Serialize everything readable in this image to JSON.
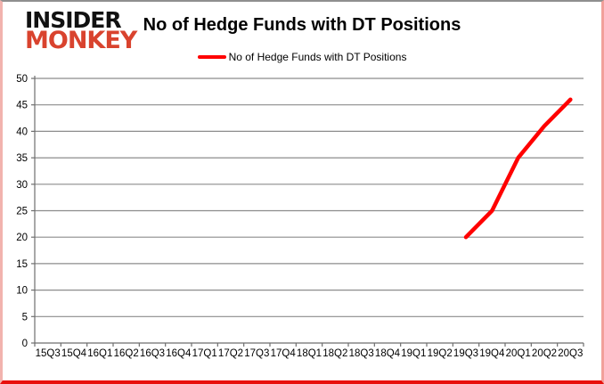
{
  "logo": {
    "line1": "INSIDER",
    "line2": "MONKEY"
  },
  "title": "No of Hedge Funds with DT Positions",
  "legend": {
    "label": "No of Hedge Funds with DT Positions"
  },
  "colors": {
    "logo_black": "#111111",
    "logo_red": "#d9432e",
    "line_red": "#ff0000",
    "grid_gray": "#8c8c8c",
    "axis_gray": "#6e6e6e",
    "label_black": "#000000",
    "border_bottom_red": "#e8100c"
  },
  "chart_data": {
    "type": "line",
    "title": "No of Hedge Funds with DT Positions",
    "categories": [
      "15Q3",
      "15Q4",
      "16Q1",
      "16Q2",
      "16Q3",
      "16Q4",
      "17Q1",
      "17Q2",
      "17Q3",
      "17Q4",
      "18Q1",
      "18Q2",
      "18Q3",
      "18Q4",
      "19Q1",
      "19Q2",
      "19Q3",
      "19Q4",
      "20Q1",
      "20Q2",
      "20Q3"
    ],
    "series": [
      {
        "name": "No of Hedge Funds with DT Positions",
        "color": "#ff0000",
        "values": [
          null,
          null,
          null,
          null,
          null,
          null,
          null,
          null,
          null,
          null,
          null,
          null,
          null,
          null,
          null,
          null,
          20,
          25,
          35,
          41,
          46
        ]
      }
    ],
    "xlabel": "",
    "ylabel": "",
    "ylim": [
      0,
      50
    ],
    "ytick_step": 5,
    "grid": true,
    "legend_position": "top"
  }
}
